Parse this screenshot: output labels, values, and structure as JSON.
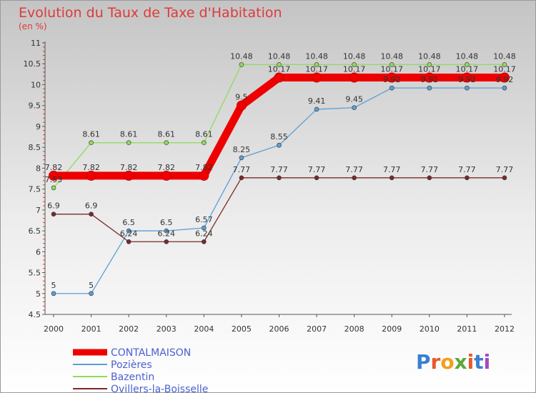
{
  "chart_data": {
    "type": "line",
    "title": "Evolution du Taux de Taxe d'Habitation",
    "subtitle": "(en %)",
    "xlabel": "",
    "ylabel": "",
    "ylim": [
      4.5,
      11
    ],
    "y_ticks": [
      "4.5",
      "5",
      "5.5",
      "6",
      "6.5",
      "7",
      "7.5",
      "8",
      "8.5",
      "9",
      "9.5",
      "10",
      "10.5",
      "11"
    ],
    "categories": [
      "2000",
      "2001",
      "2002",
      "2003",
      "2004",
      "2005",
      "2006",
      "2007",
      "2008",
      "2009",
      "2010",
      "2011",
      "2012"
    ],
    "grid": false,
    "legend_position": "bottom-left",
    "series": [
      {
        "name": "CONTALMAISON",
        "color": "#ee0000",
        "emphasis": "thick",
        "values": [
          7.82,
          7.82,
          7.82,
          7.82,
          7.82,
          9.5,
          10.17,
          10.17,
          10.17,
          10.17,
          10.17,
          10.17,
          10.17
        ],
        "labels": [
          "7.82",
          "7.82",
          "7.82",
          "7.82",
          "7.82",
          "9.5",
          "10.17",
          "10.17",
          "10.17",
          "10.17",
          "10.17",
          "10.17",
          "10.17"
        ]
      },
      {
        "name": "Pozières",
        "color": "#5c9fd6",
        "emphasis": "thin",
        "values": [
          5,
          5,
          6.5,
          6.5,
          6.57,
          8.25,
          8.55,
          9.41,
          9.45,
          9.92,
          9.92,
          9.92,
          9.92
        ],
        "labels": [
          "5",
          "5",
          "6.5",
          "6.5",
          "6.57",
          "8.25",
          "8.55",
          "9.41",
          "9.45",
          "9.92",
          "9.92",
          "9.92",
          "9.92"
        ]
      },
      {
        "name": "Bazentin",
        "color": "#8fdb5a",
        "emphasis": "thin",
        "values": [
          7.53,
          8.61,
          8.61,
          8.61,
          8.61,
          10.48,
          10.48,
          10.48,
          10.48,
          10.48,
          10.48,
          10.48,
          10.48
        ],
        "labels": [
          "7.53",
          "8.61",
          "8.61",
          "8.61",
          "8.61",
          "10.48",
          "10.48",
          "10.48",
          "10.48",
          "10.48",
          "10.48",
          "10.48",
          "10.48"
        ]
      },
      {
        "name": "Ovillers-la-Boisselle",
        "color": "#7a2a2a",
        "emphasis": "thin",
        "values": [
          6.9,
          6.9,
          6.24,
          6.24,
          6.24,
          7.77,
          7.77,
          7.77,
          7.77,
          7.77,
          7.77,
          7.77,
          7.77
        ],
        "labels": [
          "6.9",
          "6.9",
          "6.24",
          "6.24",
          "6.24",
          "7.77",
          "7.77",
          "7.77",
          "7.77",
          "7.77",
          "7.77",
          "7.77",
          "7.77"
        ]
      }
    ]
  },
  "logo": {
    "text": "Proxiti"
  }
}
